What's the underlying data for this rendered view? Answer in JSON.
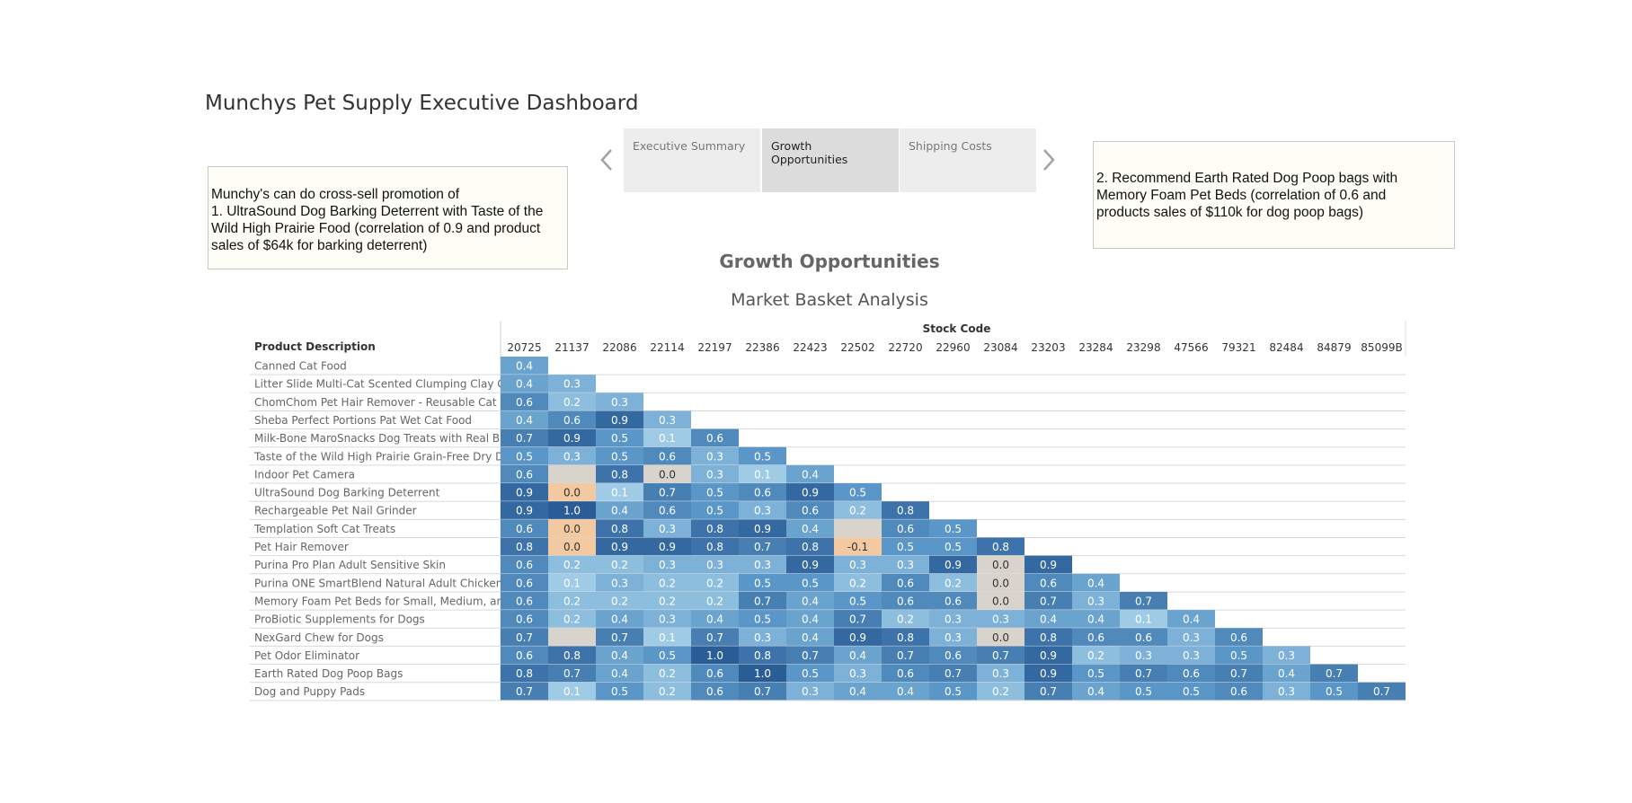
{
  "dashboard": {
    "title": "Munchys Pet Supply Executive Dashboard"
  },
  "notes": {
    "left": [
      "Munchy's can do cross-sell promotion of",
      "1. UltraSound Dog Barking Deterrent with Taste of the",
      "Wild High Prairie Food (correlation of 0.9 and product",
      "sales of $64k for barking deterrent)"
    ],
    "right": [
      "2. Recommend Earth Rated Dog Poop bags with",
      "Memory Foam Pet Beds (correlation of 0.6 and",
      "products sales of $110k for dog poop bags)"
    ]
  },
  "nav": {
    "tabs": [
      {
        "label": "Executive Summary",
        "active": false
      },
      {
        "label": "Growth Opportunities",
        "active": true
      },
      {
        "label": "Shipping Costs",
        "active": false
      }
    ]
  },
  "page": {
    "heading": "Growth Opportunities",
    "chart_title": "Market Basket Analysis"
  },
  "colors": {
    "orange": "#f2c9a0",
    "neutral": "#d8d4cc",
    "blue_light": "#9fcbe6",
    "blue_mid": "#5a96c7",
    "blue_dark": "#2a5c96"
  },
  "chart_data": {
    "type": "heatmap",
    "title": "Market Basket Analysis",
    "x_axis_title": "Stock Code",
    "y_axis_title": "Product Description",
    "x_labels": [
      "20725",
      "21137",
      "22086",
      "22114",
      "22197",
      "22386",
      "22423",
      "22502",
      "22720",
      "22960",
      "23084",
      "23203",
      "23284",
      "23298",
      "47566",
      "79321",
      "82484",
      "84879",
      "85099B"
    ],
    "rows": [
      {
        "label": "Canned Cat Food",
        "values": [
          "0.4"
        ]
      },
      {
        "label": "Litter Slide Multi-Cat Scented Clumping Clay C..",
        "values": [
          "0.4",
          "0.3"
        ]
      },
      {
        "label": "ChomChom Pet Hair Remover - Reusable Cat a..",
        "values": [
          "0.6",
          "0.2",
          "0.3"
        ]
      },
      {
        "label": "Sheba Perfect Portions Pat Wet Cat Food",
        "values": [
          "0.4",
          "0.6",
          "0.9",
          "0.3"
        ]
      },
      {
        "label": "Milk-Bone MaroSnacks Dog Treats with Real B..",
        "values": [
          "0.7",
          "0.9",
          "0.5",
          "0.1",
          "0.6"
        ]
      },
      {
        "label": "Taste of the Wild High Prairie Grain-Free Dry D..",
        "values": [
          "0.5",
          "0.3",
          "0.5",
          "0.6",
          "0.3",
          "0.5"
        ]
      },
      {
        "label": "Indoor Pet Camera",
        "values": [
          "0.6",
          "",
          "0.8",
          "0.0",
          "0.3",
          "0.1",
          "0.4"
        ]
      },
      {
        "label": "UltraSound Dog Barking Deterrent",
        "values": [
          "0.9",
          "0.0",
          "0.1",
          "0.7",
          "0.5",
          "0.6",
          "0.9",
          "0.5"
        ]
      },
      {
        "label": "Rechargeable Pet Nail Grinder",
        "values": [
          "0.9",
          "1.0",
          "0.4",
          "0.6",
          "0.5",
          "0.3",
          "0.6",
          "0.2",
          "0.8"
        ]
      },
      {
        "label": "Templation Soft Cat Treats",
        "values": [
          "0.6",
          "0.0",
          "0.8",
          "0.3",
          "0.8",
          "0.9",
          "0.4",
          "",
          "0.6",
          "0.5"
        ]
      },
      {
        "label": "Pet Hair Remover",
        "values": [
          "0.8",
          "0.0",
          "0.9",
          "0.9",
          "0.8",
          "0.7",
          "0.8",
          "-0.1",
          "0.5",
          "0.5",
          "0.8"
        ]
      },
      {
        "label": "Purina Pro Plan Adult Sensitive Skin",
        "values": [
          "0.6",
          "0.2",
          "0.2",
          "0.3",
          "0.3",
          "0.3",
          "0.9",
          "0.3",
          "0.3",
          "0.9",
          "0.0",
          "0.9"
        ]
      },
      {
        "label": "Purina ONE SmartBlend Natural Adult Chicken ..",
        "values": [
          "0.6",
          "0.1",
          "0.3",
          "0.2",
          "0.2",
          "0.5",
          "0.5",
          "0.2",
          "0.6",
          "0.2",
          "0.0",
          "0.6",
          "0.4"
        ]
      },
      {
        "label": "Memory Foam Pet Beds for Small, Medium, an..",
        "values": [
          "0.6",
          "0.2",
          "0.2",
          "0.2",
          "0.2",
          "0.7",
          "0.4",
          "0.5",
          "0.6",
          "0.6",
          "0.0",
          "0.7",
          "0.3",
          "0.7"
        ]
      },
      {
        "label": "ProBiotic Supplements for Dogs",
        "values": [
          "0.6",
          "0.2",
          "0.4",
          "0.3",
          "0.4",
          "0.5",
          "0.4",
          "0.7",
          "0.2",
          "0.3",
          "0.3",
          "0.4",
          "0.4",
          "0.1",
          "0.4"
        ]
      },
      {
        "label": "NexGard Chew for Dogs",
        "values": [
          "0.7",
          "",
          "0.7",
          "0.1",
          "0.7",
          "0.3",
          "0.4",
          "0.9",
          "0.8",
          "0.3",
          "0.0",
          "0.8",
          "0.6",
          "0.6",
          "0.3",
          "0.6"
        ]
      },
      {
        "label": "Pet Odor Eliminator",
        "values": [
          "0.6",
          "0.8",
          "0.4",
          "0.5",
          "1.0",
          "0.8",
          "0.7",
          "0.4",
          "0.7",
          "0.6",
          "0.7",
          "0.9",
          "0.2",
          "0.3",
          "0.3",
          "0.5",
          "0.3"
        ]
      },
      {
        "label": "Earth Rated Dog Poop Bags",
        "values": [
          "0.8",
          "0.7",
          "0.4",
          "0.2",
          "0.6",
          "1.0",
          "0.5",
          "0.3",
          "0.6",
          "0.7",
          "0.3",
          "0.9",
          "0.5",
          "0.7",
          "0.6",
          "0.7",
          "0.4",
          "0.7"
        ]
      },
      {
        "label": "Dog and Puppy Pads",
        "values": [
          "0.7",
          "0.1",
          "0.5",
          "0.2",
          "0.6",
          "0.7",
          "0.3",
          "0.4",
          "0.4",
          "0.5",
          "0.2",
          "0.7",
          "0.4",
          "0.5",
          "0.5",
          "0.6",
          "0.3",
          "0.5",
          "0.7"
        ]
      }
    ]
  }
}
